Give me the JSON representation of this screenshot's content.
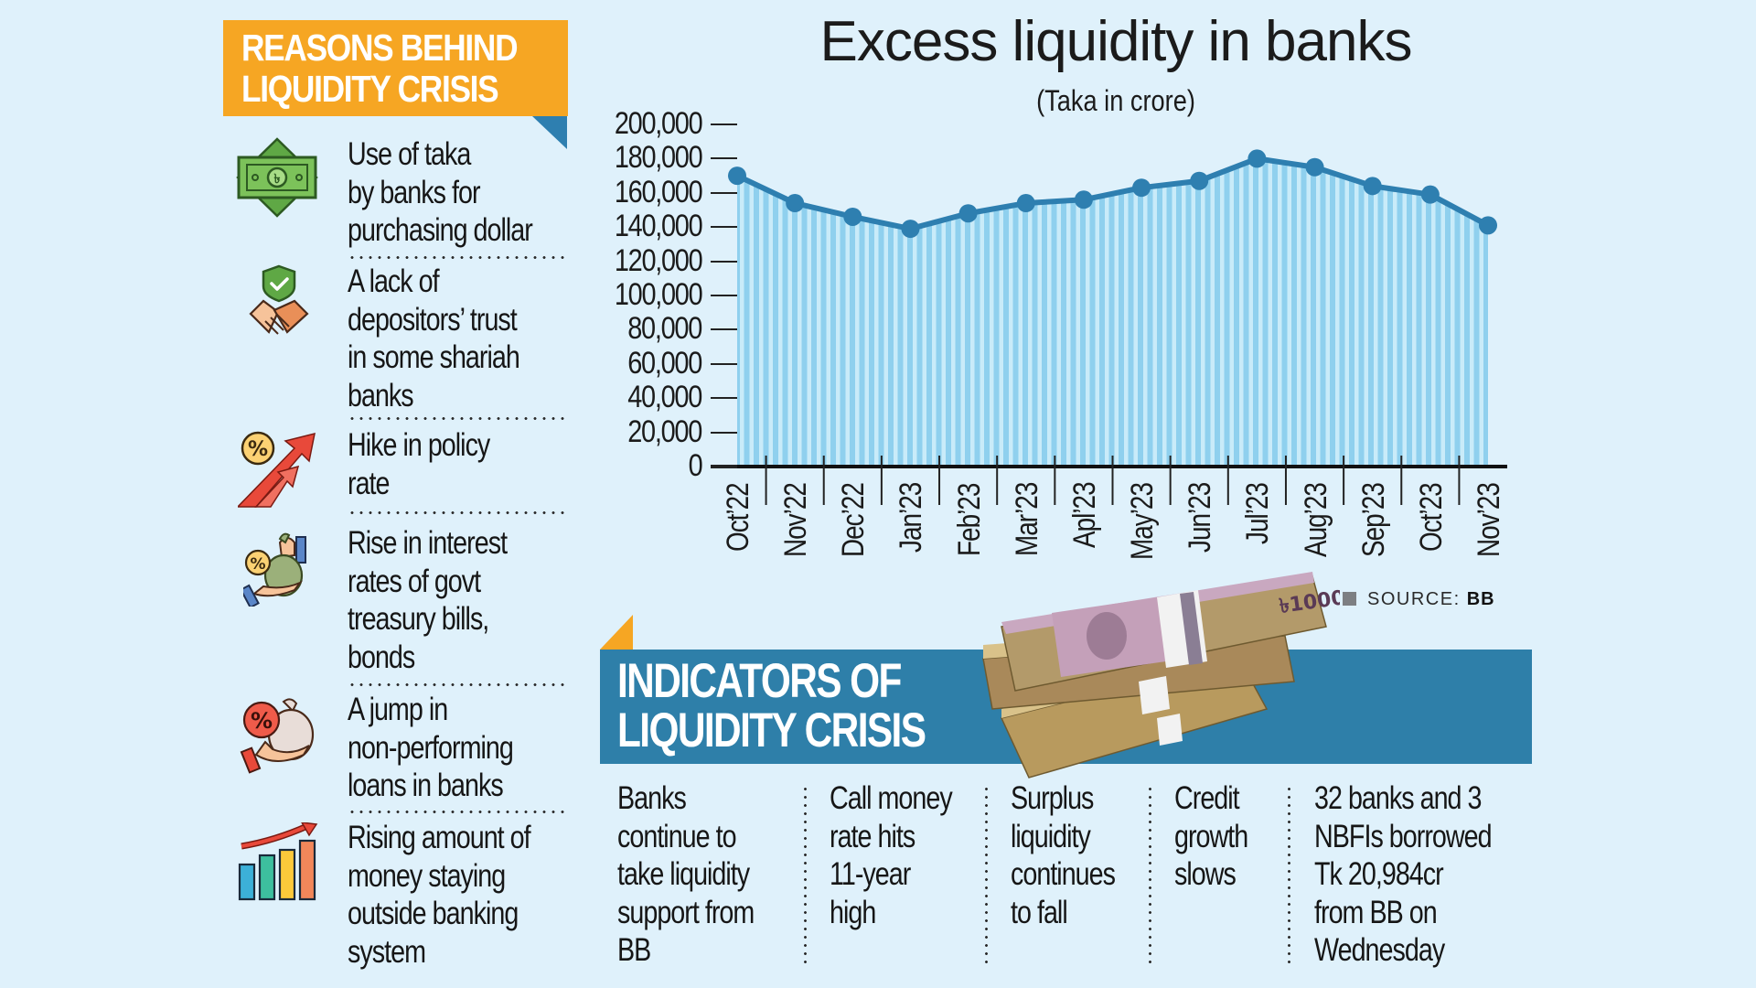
{
  "reasons": {
    "title_lines": [
      "REASONS BEHIND",
      "LIQUIDITY CRISIS"
    ],
    "items": [
      {
        "icon": "taka-banknote-icon",
        "lines": [
          "Use of taka",
          "by banks for",
          "purchasing dollar"
        ]
      },
      {
        "icon": "trust-handshake-shield-icon",
        "lines": [
          "A lack of",
          "depositors’ trust",
          "in some shariah",
          "banks"
        ]
      },
      {
        "icon": "rising-percent-arrow-icon",
        "lines": [
          "Hike in policy",
          "rate"
        ]
      },
      {
        "icon": "money-bag-percent-hand-icon",
        "lines": [
          "Rise in interest",
          "rates of govt",
          "treasury bills,",
          "bonds"
        ]
      },
      {
        "icon": "loan-bag-percent-hand-icon",
        "lines": [
          "A jump in",
          "non-performing",
          "loans in banks"
        ]
      },
      {
        "icon": "rising-bar-chart-icon",
        "lines": [
          "Rising amount of",
          "money staying",
          "outside banking",
          "system"
        ]
      }
    ]
  },
  "chart_data": {
    "type": "area",
    "title": "Excess liquidity in banks",
    "subtitle": "(Taka in crore)",
    "xlabel": "",
    "ylabel": "Taka in crore",
    "categories": [
      "Oct’22",
      "Nov’22",
      "Dec’22",
      "Jan’23",
      "Feb’23",
      "Mar’23",
      "Apl’23",
      "May’23",
      "Jun’23",
      "Jul’23",
      "Aug’23",
      "Sep’23",
      "Oct’23",
      "Nov’23"
    ],
    "values": [
      170000,
      154000,
      146000,
      139000,
      148000,
      154000,
      156000,
      163000,
      167000,
      180000,
      175000,
      164000,
      159000,
      141000
    ],
    "yticks": [
      "200,000",
      "180,000",
      "160,000",
      "140,000",
      "120,000",
      "100,000",
      "80,000",
      "60,000",
      "40,000",
      "20,000",
      "0"
    ],
    "ylim": [
      0,
      200000
    ],
    "grid": false,
    "legend": "none",
    "source_label": "SOURCE:",
    "source_value": "BB",
    "colors": {
      "line": "#2e7fb0",
      "fill_stripe": "#8fd0ee",
      "fill_bg": "#c7e9f8"
    }
  },
  "indicators": {
    "title_lines": [
      "INDICATORS OF",
      "LIQUIDITY CRISIS"
    ],
    "items": [
      {
        "lines": [
          "Banks",
          "continue to",
          "take liquidity",
          "support from",
          "BB"
        ]
      },
      {
        "lines": [
          "Call money",
          "rate hits",
          "11-year",
          "high"
        ]
      },
      {
        "lines": [
          "Surplus",
          "liquidity",
          "continues",
          "to fall"
        ]
      },
      {
        "lines": [
          "Credit",
          "growth",
          "slows"
        ]
      },
      {
        "lines": [
          "32 banks and 3",
          "NBFIs borrowed",
          "Tk 20,984cr",
          "from BB on",
          "Wednesday"
        ]
      }
    ]
  },
  "colors": {
    "background": "#dff1fb",
    "orange": "#f6a623",
    "blue_banner": "#2e7fa9"
  }
}
